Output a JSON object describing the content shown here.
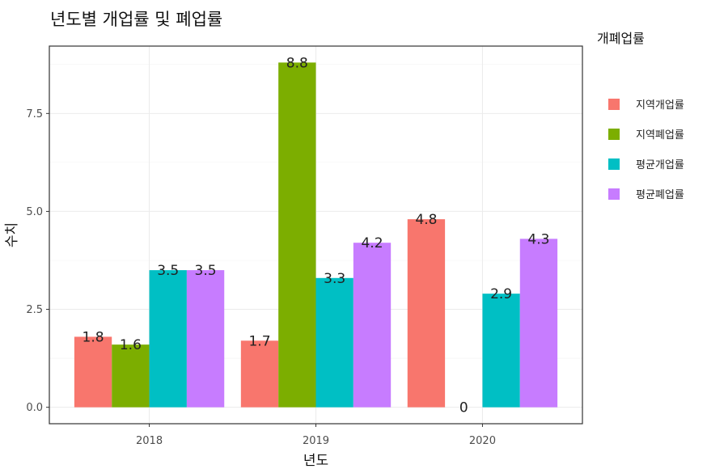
{
  "chart_data": {
    "type": "bar",
    "title": "년도별 개업률 및 폐업률",
    "xlabel": "년도",
    "ylabel": "수치",
    "categories": [
      "2018",
      "2019",
      "2020"
    ],
    "series": [
      {
        "name": "지역개업률",
        "color": "#F8766D",
        "values": [
          1.8,
          1.7,
          4.8
        ]
      },
      {
        "name": "지역폐업률",
        "color": "#7CAE00",
        "values": [
          1.6,
          8.8,
          0
        ]
      },
      {
        "name": "평균개업률",
        "color": "#00BFC4",
        "values": [
          3.5,
          3.3,
          2.9
        ]
      },
      {
        "name": "평균폐업률",
        "color": "#C77CFF",
        "values": [
          3.5,
          4.2,
          4.3
        ]
      }
    ],
    "yticks": [
      "0.0",
      "2.5",
      "5.0",
      "7.5"
    ],
    "ylim": [
      -0.42,
      9.22
    ],
    "legend_title": "개폐업률",
    "legend_position": "right",
    "grid": true
  }
}
